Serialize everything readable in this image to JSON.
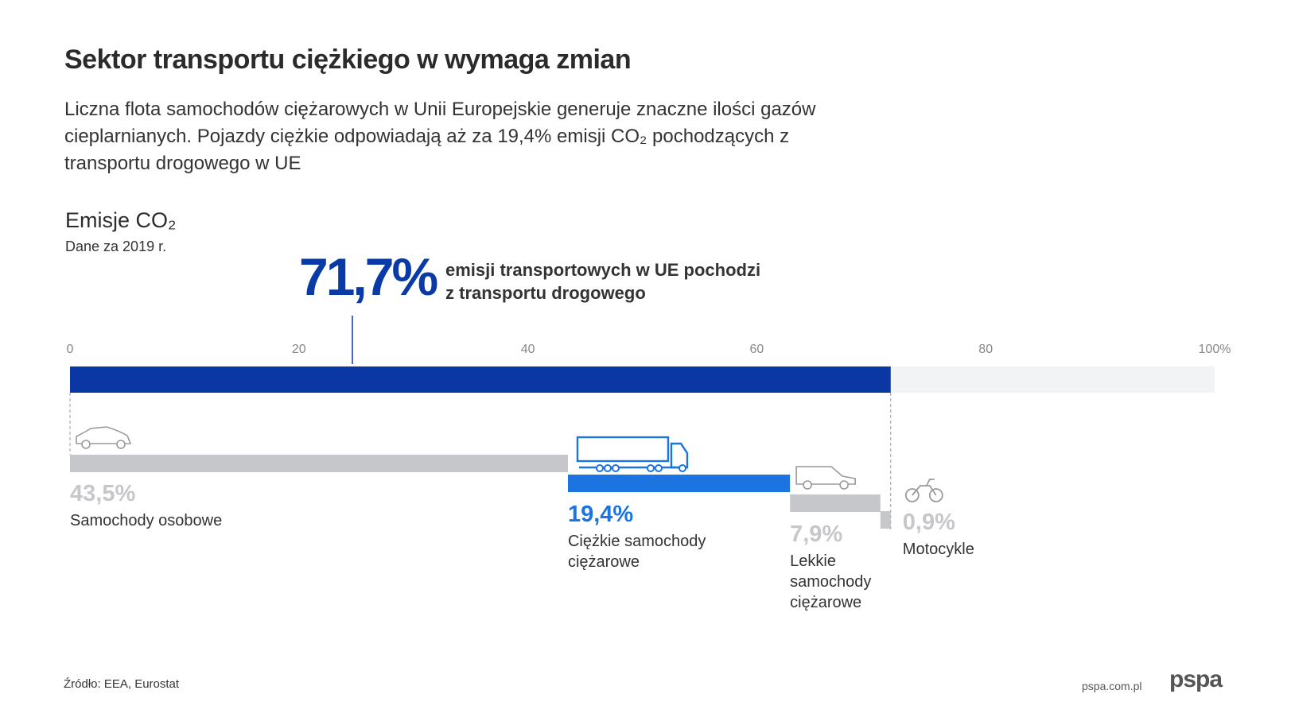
{
  "header": {
    "title": "Sektor transportu ciężkiego w wymaga zmian",
    "subtitle": "Liczna flota samochodów ciężarowych w Unii Europejskie generuje znaczne ilości gazów cieplarnianych. Pojazdy ciężkie odpowiadają aż za 19,4% emisji CO₂ pochodzących z transportu drogowego w UE"
  },
  "section": {
    "heading": "Emisje CO₂",
    "subheading": "Dane za 2019 r."
  },
  "highlight": {
    "value_label": "71,7%",
    "text_line1": "emisji transportowych w UE pochodzi",
    "text_line2": "z transportu drogowego"
  },
  "chart_data": {
    "type": "bar",
    "xlim": [
      0,
      100
    ],
    "ticks": [
      0,
      20,
      40,
      60,
      80,
      100
    ],
    "tick_labels": [
      "0",
      "20",
      "40",
      "60",
      "80",
      "100%"
    ],
    "total": {
      "value": 71.7,
      "label": "71,7%"
    },
    "segments": [
      {
        "label_lines": [
          "Samochody osobowe"
        ],
        "value": 43.5,
        "value_label": "43,5%",
        "icon": "car-icon",
        "color": "#c5c7cb",
        "text_color": "#c5c7cb"
      },
      {
        "label_lines": [
          "Ciężkie samochody",
          "ciężarowe"
        ],
        "value": 19.4,
        "value_label": "19,4%",
        "icon": "truck-icon",
        "color": "#1b74e0",
        "text_color": "#1b74e0"
      },
      {
        "label_lines": [
          "Lekkie",
          "samochody",
          "ciężarowe"
        ],
        "value": 7.9,
        "value_label": "7,9%",
        "icon": "van-icon",
        "color": "#c5c7cb",
        "text_color": "#c5c7cb"
      },
      {
        "label_lines": [
          "Motocykle"
        ],
        "value": 0.9,
        "value_label": "0,9%",
        "icon": "motorcycle-icon",
        "color": "#c5c7cb",
        "text_color": "#c5c7cb"
      }
    ],
    "colors": {
      "total": "#0a37a4",
      "background": "#f2f3f5",
      "axis_text": "#888888"
    }
  },
  "footer": {
    "source": "Źródło: EEA, Eurostat",
    "site": "pspa.com.pl",
    "logo": "pspa"
  }
}
